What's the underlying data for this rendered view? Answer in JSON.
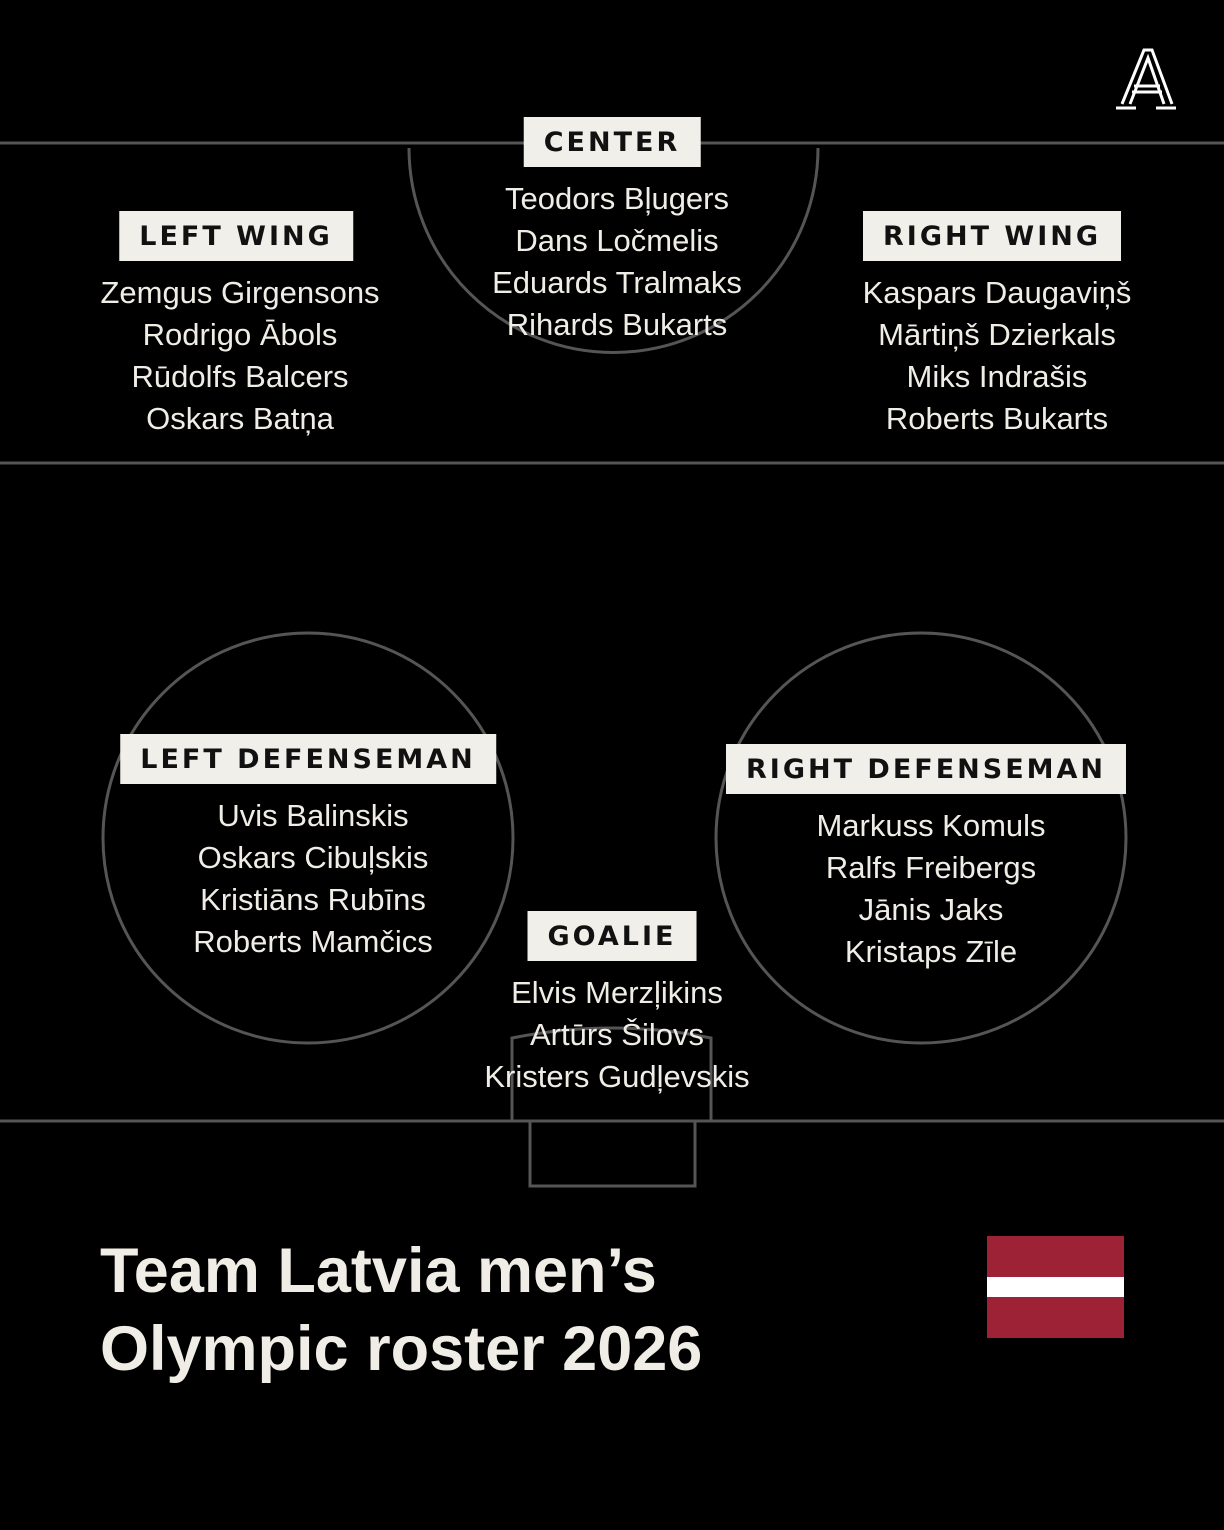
{
  "logo": "The Athletic A logo",
  "positions": {
    "center": {
      "label": "CENTER",
      "players": [
        "Teodors Bļugers",
        "Dans Ločmelis",
        "Eduards Tralmaks",
        "Rihards Bukarts"
      ]
    },
    "left_wing": {
      "label": "LEFT WING",
      "players": [
        "Zemgus Girgensons",
        "Rodrigo Ābols",
        "Rūdolfs Balcers",
        "Oskars Batņa"
      ]
    },
    "right_wing": {
      "label": "RIGHT WING",
      "players": [
        "Kaspars Daugaviņš",
        "Mārtiņš Dzierkals",
        "Miks Indrašis",
        "Roberts Bukarts"
      ]
    },
    "left_defenseman": {
      "label": "LEFT DEFENSEMAN",
      "players": [
        "Uvis Balinskis",
        "Oskars Cibuļskis",
        "Kristiāns Rubīns",
        "Roberts Mamčics"
      ]
    },
    "right_defenseman": {
      "label": "RIGHT DEFENSEMAN",
      "players": [
        "Markuss Komuls",
        "Ralfs Freibergs",
        "Jānis Jaks",
        "Kristaps Zīle"
      ]
    },
    "goalie": {
      "label": "GOALIE",
      "players": [
        "Elvis Merzļikins",
        "Artūrs Šilovs",
        "Kristers Gudļevskis"
      ]
    }
  },
  "title": {
    "line1": "Team Latvia men’s",
    "line2": "Olympic roster 2026"
  },
  "flag": {
    "country": "Latvia",
    "colors": {
      "red": "#9e2235",
      "white": "#ffffff"
    }
  },
  "colors": {
    "background": "#000000",
    "rink_lines": "#555555",
    "label_bg": "#f0efe9",
    "text": "#f0ede6"
  }
}
